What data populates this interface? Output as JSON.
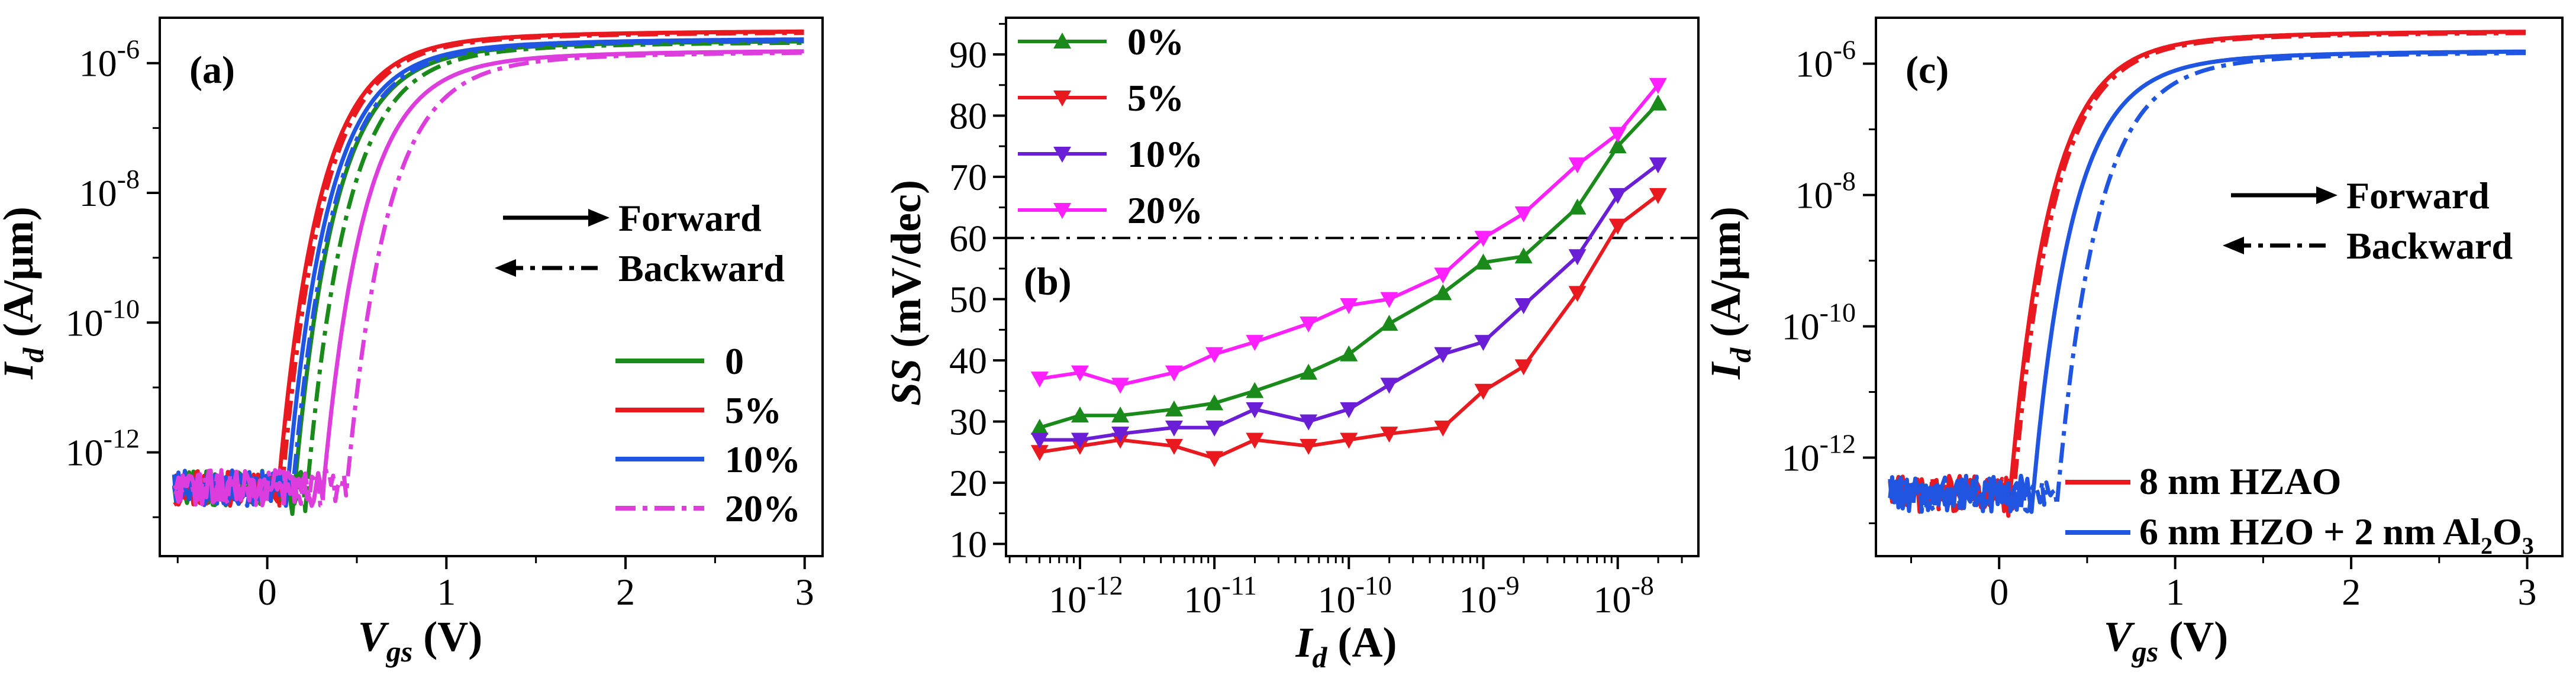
{
  "chart_data": [
    {
      "panel": "(a)",
      "type": "line",
      "title": "",
      "xlabel": {
        "symbol": "V",
        "sub": "gs",
        "unit": " (V)"
      },
      "ylabel": {
        "symbol": "I",
        "sub": "d",
        "unit": " (A/μm)"
      },
      "x_scale": "linear",
      "y_scale": "log",
      "xlim": [
        -0.6,
        3.1
      ],
      "ylim_log10": [
        -13.6,
        -5.3
      ],
      "x_ticks": [
        0,
        1,
        2,
        3
      ],
      "x_tick_labels": [
        "0",
        "1",
        "2",
        "3"
      ],
      "y_ticks_log10": [
        -12,
        -10,
        -8,
        -6
      ],
      "y_tick_labels": [
        {
          "base": "10",
          "exp": "-12"
        },
        {
          "base": "10",
          "exp": "-10"
        },
        {
          "base": "10",
          "exp": "-8"
        },
        {
          "base": "10",
          "exp": "-6"
        }
      ],
      "direction_legend": [
        {
          "style": "solid",
          "label": "Forward",
          "arrow": "right"
        },
        {
          "style": "dashdot",
          "label": "Backward",
          "arrow": "left"
        }
      ],
      "series": [
        {
          "name": "0",
          "color": "#1a8a1a",
          "vth": 0.14,
          "sat_log": -5.65,
          "hyst": 0.07
        },
        {
          "name": "5%",
          "color": "#e8191f",
          "vth": 0.05,
          "sat_log": -5.5,
          "hyst": 0.02
        },
        {
          "name": "10%",
          "color": "#1f55e0",
          "vth": 0.1,
          "sat_log": -5.62,
          "hyst": 0.03
        },
        {
          "name": "20%",
          "color": "#dd3ddd",
          "vth": 0.3,
          "sat_log": -5.8,
          "hyst": 0.13
        }
      ]
    },
    {
      "panel": "(b)",
      "type": "line",
      "title": "",
      "xlabel": {
        "symbol": "I",
        "sub": "d",
        "unit": " (A)"
      },
      "ylabel": {
        "symbol": "SS",
        "unit": " (mV/dec)"
      },
      "x_scale": "log",
      "y_scale": "linear",
      "xlim_log10": [
        -12.55,
        -7.4
      ],
      "ylim": [
        8,
        96
      ],
      "y_ticks": [
        10,
        20,
        30,
        40,
        50,
        60,
        70,
        80,
        90
      ],
      "y_tick_labels": [
        "10",
        "20",
        "30",
        "40",
        "50",
        "60",
        "70",
        "80",
        "90"
      ],
      "x_ticks_log10": [
        -12,
        -11,
        -10,
        -9,
        -8
      ],
      "x_tick_labels": [
        {
          "base": "10",
          "exp": "-12"
        },
        {
          "base": "10",
          "exp": "-11"
        },
        {
          "base": "10",
          "exp": "-10"
        },
        {
          "base": "10",
          "exp": "-9"
        },
        {
          "base": "10",
          "exp": "-8"
        }
      ],
      "reference_line": {
        "y": 60,
        "style": "dashdot"
      },
      "x_log10": [
        -12.3,
        -12.0,
        -11.7,
        -11.3,
        -11.0,
        -10.7,
        -10.3,
        -10.0,
        -9.7,
        -9.3,
        -9.0,
        -8.7,
        -8.3,
        -8.0,
        -7.7
      ],
      "series": [
        {
          "name": "0%",
          "color": "#1a8a1a",
          "marker": "triangle-up",
          "values": [
            29,
            31,
            31,
            32,
            33,
            35,
            38,
            41,
            46,
            51,
            56,
            57,
            65,
            75,
            82
          ]
        },
        {
          "name": "5%",
          "color": "#e8191f",
          "marker": "triangle-down",
          "values": [
            25,
            26,
            27,
            26,
            24,
            27,
            26,
            27,
            28,
            29,
            35,
            39,
            51,
            62,
            67
          ]
        },
        {
          "name": "10%",
          "color": "#6a1fd6",
          "marker": "triangle-down",
          "values": [
            27,
            27,
            28,
            29,
            29,
            32,
            30,
            32,
            36,
            41,
            43,
            49,
            57,
            67,
            72
          ]
        },
        {
          "name": "20%",
          "color": "#ff20ff",
          "marker": "triangle-down",
          "values": [
            37,
            38,
            36,
            38,
            41,
            43,
            46,
            49,
            50,
            54,
            60,
            64,
            72,
            77,
            85
          ]
        }
      ]
    },
    {
      "panel": "(c)",
      "type": "line",
      "title": "",
      "xlabel": {
        "symbol": "V",
        "sub": "gs",
        "unit": " (V)"
      },
      "ylabel": {
        "symbol": "I",
        "sub": "d",
        "unit": " (A/μm)"
      },
      "x_scale": "linear",
      "y_scale": "log",
      "xlim": [
        -0.7,
        3.2
      ],
      "ylim_log10": [
        -13.5,
        -5.3
      ],
      "x_ticks": [
        0,
        1,
        2,
        3
      ],
      "x_tick_labels": [
        "0",
        "1",
        "2",
        "3"
      ],
      "y_ticks_log10": [
        -12,
        -10,
        -8,
        -6
      ],
      "y_tick_labels": [
        {
          "base": "10",
          "exp": "-12"
        },
        {
          "base": "10",
          "exp": "-10"
        },
        {
          "base": "10",
          "exp": "-8"
        },
        {
          "base": "10",
          "exp": "-6"
        }
      ],
      "direction_legend": [
        {
          "style": "solid",
          "label": "Forward",
          "arrow": "right"
        },
        {
          "style": "dashdot",
          "label": "Backward",
          "arrow": "left"
        }
      ],
      "series": [
        {
          "name": "8 nm HZAO",
          "name_sub": "",
          "name_tail": "",
          "color": "#e8191f",
          "vth": 0.05,
          "sat_log": -5.5,
          "hyst": 0.02
        },
        {
          "name": "6 nm HZO + 2 nm Al",
          "name_sub": "2",
          "name_mid": "O",
          "name_sub2": "3",
          "color": "#1f55e0",
          "vth": 0.18,
          "sat_log": -5.8,
          "hyst": 0.14
        }
      ]
    }
  ]
}
